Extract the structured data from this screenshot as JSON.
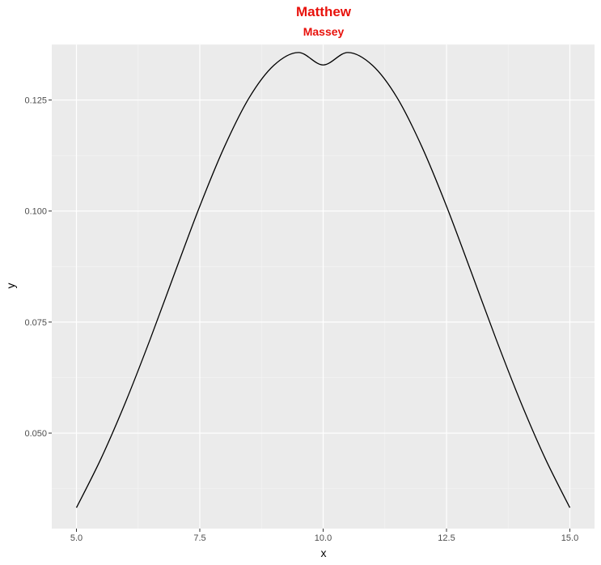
{
  "chart_data": {
    "type": "line",
    "title": "Matthew",
    "subtitle": "Massey",
    "xlabel": "x",
    "ylabel": "y",
    "xlim": [
      4.5,
      15.5
    ],
    "ylim": [
      0.0285,
      0.1375
    ],
    "x_ticks": [
      5.0,
      7.5,
      10.0,
      12.5,
      15.0
    ],
    "x_tick_labels": [
      "5.0",
      "7.5",
      "10.0",
      "12.5",
      "15.0"
    ],
    "y_ticks": [
      0.05,
      0.075,
      0.1,
      0.125
    ],
    "y_tick_labels": [
      "0.050",
      "0.075",
      "0.100",
      "0.125"
    ],
    "grid": true,
    "series": [
      {
        "line_color": "#000000",
        "x": [
          5.0,
          5.5,
          6.0,
          6.5,
          7.0,
          7.5,
          8.0,
          8.5,
          9.0,
          9.5,
          10.0,
          10.5,
          11.0,
          11.5,
          12.0,
          12.5,
          13.0,
          13.5,
          14.0,
          14.5,
          15.0
        ],
        "y": [
          0.0332,
          0.0443,
          0.0571,
          0.0713,
          0.0863,
          0.1011,
          0.1145,
          0.1255,
          0.1328,
          0.1357,
          0.1329,
          0.1357,
          0.1328,
          0.1255,
          0.1145,
          0.1011,
          0.0863,
          0.0713,
          0.0571,
          0.0443,
          0.0332
        ]
      }
    ]
  },
  "colors": {
    "title": "#e8120c",
    "panel_background": "#ebebeb",
    "grid_major": "#ffffff",
    "grid_minor": "#f5f5f5",
    "line": "#000000"
  }
}
